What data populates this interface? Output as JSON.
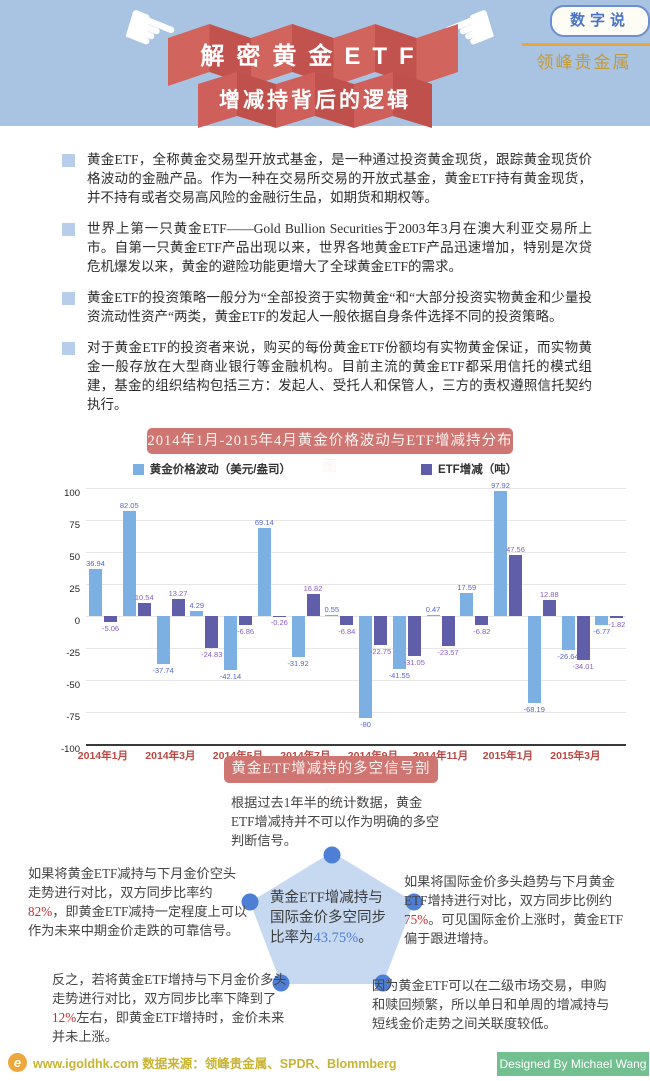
{
  "header": {
    "badge": "数字说",
    "brand": "领峰贵金属",
    "title_line1": "解密黄金ETF",
    "title_line2": "增减持背后的逻辑",
    "bg_color": "#a9c3e3",
    "ribbon_color": "#d2645e"
  },
  "intro": {
    "paragraphs": [
      "黄金ETF，全称黄金交易型开放式基金，是一种通过投资黄金现货，跟踪黄金现货价格波动的金融产品。作为一种在交易所交易的开放式基金，黄金ETF持有黄金现货，并不持有或者交易高风险的金融衍生品，如期货和期权等。",
      "世界上第一只黄金ETF——Gold Bullion Securities于2003年3月在澳大利亚交易所上市。自第一只黄金ETF产品出现以来，世界各地黄金ETF产品迅速增加，特别是次贷危机爆发以来，黄金的避险功能更增大了全球黄金ETF的需求。",
      "黄金ETF的投资策略一般分为“全部投资于实物黄金“和“大部分投资实物黄金和少量投资流动性资产“两类，黄金ETF的发起人一般依据自身条件选择不同的投资策略。",
      "对于黄金ETF的投资者来说，购买的每份黄金ETF份额均有实物黄金保证，而实物黄金一般存放在大型商业银行等金融机构。目前主流的黄金ETF都采用信托的模式组建，基金的组织结构包括三方：发起人、受托人和保管人，三方的责权遵照信托契约执行。"
    ]
  },
  "chart": {
    "title": "2014年1月-2015年4月黄金价格波动与ETF增减持分布图",
    "badge_color": "#cf7673"
  },
  "chart_data": {
    "type": "bar",
    "title": "2014年1月-2015年4月黄金价格波动与ETF增减持分布图",
    "categories": [
      "2014年1月",
      "2014年2月",
      "2014年3月",
      "2014年4月",
      "2014年5月",
      "2014年6月",
      "2014年7月",
      "2014年8月",
      "2014年9月",
      "2014年10月",
      "2014年11月",
      "2014年12月",
      "2015年1月",
      "2015年2月",
      "2015年3月",
      "2015年4月"
    ],
    "series": [
      {
        "name": "黄金价格波动（美元/盎司）",
        "color": "#7cb0e2",
        "label_color": "#5565d6",
        "values": [
          36.94,
          82.05,
          -37.74,
          4.29,
          -42.14,
          69.14,
          -31.92,
          0.55,
          -80,
          -41.55,
          0.47,
          17.59,
          97.92,
          -68.19,
          -26.64,
          -6.77
        ]
      },
      {
        "name": "ETF增减（吨）",
        "color": "#605da9",
        "label_color": "#8a5ec4",
        "values": [
          -5.06,
          10.54,
          13.27,
          -24.83,
          -6.86,
          -0.26,
          16.82,
          -6.84,
          -22.75,
          -31.05,
          -23.57,
          -6.82,
          47.56,
          12.88,
          -34.01,
          -1.82
        ]
      }
    ],
    "ylim": [
      -100,
      100
    ],
    "ytick_step": 25,
    "x_tick_labels": [
      "2014年1月",
      "2014年3月",
      "2014年5月",
      "2014年7月",
      "2014年9月",
      "2014年11月",
      "2015年1月",
      "2015年3月"
    ],
    "grid": true,
    "legend_position": "top"
  },
  "analysis": {
    "title": "黄金ETF增减持的多空信号剖析",
    "top_note": "根据过去1年半的统计数据，黄金ETF增减持并不可以作为明确的多空判断信号。",
    "pentagon": {
      "before": "黄金ETF增减持与国际金价多空同步比率为",
      "highlight": "43.75%",
      "after": "。",
      "highlight_color": "#4d7fd6"
    },
    "left_note": {
      "before": "如果将黄金ETF减持与下月金价空头走势进行对比，双方同步比率约",
      "highlight": "82%",
      "after": "，即黄金ETF减持一定程度上可以作为未来中期金价走跌的可靠信号。"
    },
    "right_note": {
      "before": "如果将国际金价多头趋势与下月黄金ETF增持进行对比，双方同步比例约",
      "highlight": "75%",
      "after": "。可见国际金价上涨时，黄金ETF偏于跟进增持。"
    },
    "bottom_left_note": {
      "before": "反之，若将黄金ETF增持与下月金价多头走势进行对比，双方同步比率下降到了",
      "highlight": "12%",
      "after": "左右，即黄金ETF增持时，金价未来并未上涨。"
    },
    "bottom_right_note": "因为黄金ETF可以在二级市场交易，申购和赎回频繁，所以单日和单周的增减持与短线金价走势之间关联度较低。",
    "highlight_color": "#cc2a2a"
  },
  "footer": {
    "site": "www.igoldhk.com",
    "source": "数据来源：领峰贵金属、SPDR、Blommberg",
    "credit": "Designed By Michael Wang",
    "credit_bg": "#72bf90",
    "text_color": "#c9b431"
  }
}
